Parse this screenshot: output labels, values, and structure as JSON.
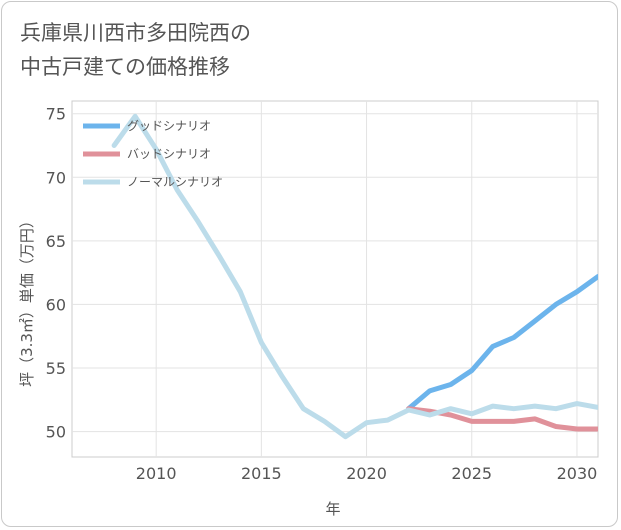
{
  "title_line1": "兵庫県川西市多田院西の",
  "title_line2": "中古戸建ての価格推移",
  "chart_data": {
    "type": "line",
    "xlabel": "年",
    "ylabel": "坪（3.3㎡）単価（万円）",
    "xlim": [
      2006,
      2031
    ],
    "ylim": [
      48,
      76
    ],
    "x_ticks": [
      2010,
      2015,
      2020,
      2025,
      2030
    ],
    "y_ticks": [
      50,
      55,
      60,
      65,
      70,
      75
    ],
    "grid": true,
    "legend_position": "top-left",
    "series": [
      {
        "name": "グッドシナリオ",
        "color": "#6cb4ec",
        "x": [
          2022,
          2023,
          2024,
          2025,
          2026,
          2027,
          2028,
          2029,
          2030,
          2031
        ],
        "y": [
          51.8,
          53.2,
          53.7,
          54.8,
          56.7,
          57.4,
          58.7,
          60.0,
          61.0,
          62.2
        ]
      },
      {
        "name": "バッドシナリオ",
        "color": "#e0919a",
        "x": [
          2022,
          2023,
          2024,
          2025,
          2026,
          2027,
          2028,
          2029,
          2030,
          2031
        ],
        "y": [
          51.8,
          51.6,
          51.3,
          50.8,
          50.8,
          50.8,
          51.0,
          50.4,
          50.2,
          50.2
        ]
      },
      {
        "name": "ノーマルシナリオ",
        "color": "#bcdcea",
        "x": [
          2008,
          2009,
          2010,
          2011,
          2012,
          2013,
          2014,
          2015,
          2016,
          2017,
          2018,
          2019,
          2020,
          2021,
          2022,
          2023,
          2024,
          2025,
          2026,
          2027,
          2028,
          2029,
          2030,
          2031
        ],
        "y": [
          72.5,
          74.8,
          72.2,
          69.0,
          66.5,
          63.8,
          61.0,
          57.0,
          54.3,
          51.8,
          50.8,
          49.6,
          50.7,
          50.9,
          51.7,
          51.3,
          51.8,
          51.4,
          52.0,
          51.8,
          52.0,
          51.8,
          52.2,
          51.9
        ]
      }
    ]
  }
}
